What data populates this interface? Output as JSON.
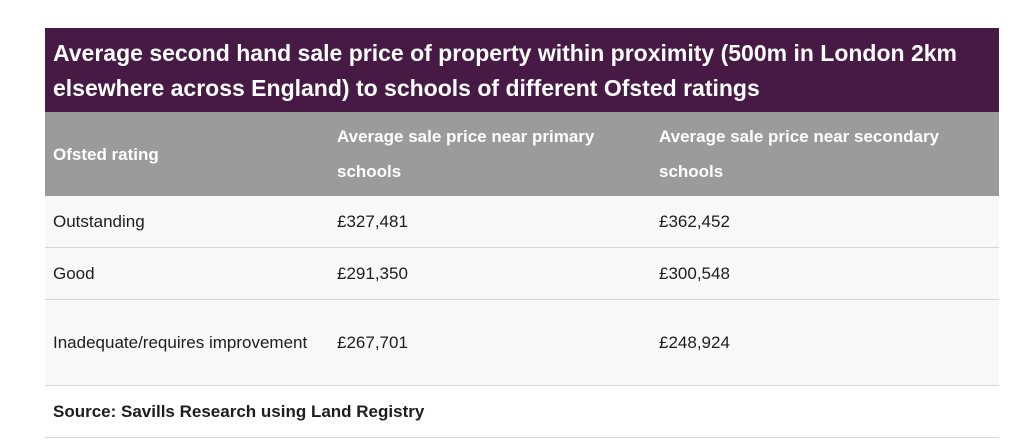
{
  "title": "Average second hand sale price of property within proximity (500m in London 2km elsewhere across England) to schools of different Ofsted ratings",
  "columns": [
    "Ofsted rating",
    "Average sale price near primary schools",
    "Average sale price near secondary schools"
  ],
  "rows": [
    {
      "rating": "Outstanding",
      "primary": "£327,481",
      "secondary": "£362,452"
    },
    {
      "rating": "Good",
      "primary": "£291,350",
      "secondary": "£300,548"
    },
    {
      "rating": "Inadequate/requires improvement",
      "primary": "£267,701",
      "secondary": "£248,924"
    }
  ],
  "source": "Source: Savills Research using Land Registry",
  "colors": {
    "title_bg": "#461a45",
    "header_bg": "#9b9b9b",
    "row_bg": "#f8f8f8"
  }
}
